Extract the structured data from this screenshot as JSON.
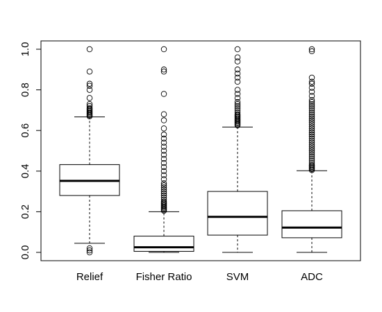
{
  "chart_data": {
    "type": "boxplot",
    "title": "",
    "xlabel": "",
    "ylabel": "",
    "ylim": [
      0,
      1
    ],
    "yticks": [
      0.0,
      0.2,
      0.4,
      0.6,
      0.8,
      1.0
    ],
    "ytick_labels": [
      "0.0",
      "0.2",
      "0.4",
      "0.6",
      "0.8",
      "1.0"
    ],
    "grid": false,
    "categories": [
      "Relief",
      "Fisher Ratio",
      "SVM",
      "ADC"
    ],
    "boxes": [
      {
        "category": "Relief",
        "whisker_low": 0.045,
        "q1": 0.28,
        "median": 0.352,
        "q3": 0.432,
        "whisker_high": 0.667,
        "outliers": [
          0.0,
          0.01,
          0.02,
          0.67,
          0.675,
          0.68,
          0.685,
          0.69,
          0.695,
          0.7,
          0.705,
          0.71,
          0.72,
          0.73,
          0.76,
          0.8,
          0.82,
          0.83,
          0.89,
          1.0
        ]
      },
      {
        "category": "Fisher Ratio",
        "whisker_low": 0.0,
        "q1": 0.005,
        "median": 0.025,
        "q3": 0.08,
        "whisker_high": 0.2,
        "outliers": [
          0.205,
          0.21,
          0.215,
          0.22,
          0.225,
          0.23,
          0.235,
          0.24,
          0.245,
          0.25,
          0.26,
          0.27,
          0.28,
          0.29,
          0.3,
          0.31,
          0.32,
          0.33,
          0.34,
          0.36,
          0.38,
          0.4,
          0.42,
          0.44,
          0.46,
          0.48,
          0.5,
          0.52,
          0.54,
          0.56,
          0.58,
          0.61,
          0.65,
          0.68,
          0.78,
          0.89,
          0.9,
          1.0
        ]
      },
      {
        "category": "SVM",
        "whisker_low": 0.0,
        "q1": 0.085,
        "median": 0.175,
        "q3": 0.3,
        "whisker_high": 0.617,
        "outliers": [
          0.625,
          0.63,
          0.635,
          0.64,
          0.645,
          0.65,
          0.655,
          0.66,
          0.665,
          0.67,
          0.675,
          0.68,
          0.69,
          0.7,
          0.71,
          0.72,
          0.73,
          0.74,
          0.76,
          0.78,
          0.8,
          0.84,
          0.86,
          0.88,
          0.9,
          0.94,
          0.96,
          1.0
        ]
      },
      {
        "category": "ADC",
        "whisker_low": 0.0,
        "q1": 0.072,
        "median": 0.122,
        "q3": 0.205,
        "whisker_high": 0.402,
        "outliers": [
          0.405,
          0.41,
          0.415,
          0.42,
          0.425,
          0.43,
          0.44,
          0.45,
          0.46,
          0.47,
          0.48,
          0.49,
          0.5,
          0.51,
          0.52,
          0.53,
          0.54,
          0.55,
          0.56,
          0.57,
          0.58,
          0.59,
          0.6,
          0.61,
          0.62,
          0.63,
          0.64,
          0.65,
          0.66,
          0.67,
          0.68,
          0.69,
          0.7,
          0.71,
          0.72,
          0.73,
          0.74,
          0.75,
          0.77,
          0.79,
          0.81,
          0.83,
          0.84,
          0.86,
          0.99,
          1.0
        ]
      }
    ],
    "colors": {
      "stroke": "#000000",
      "background": "#ffffff"
    }
  }
}
